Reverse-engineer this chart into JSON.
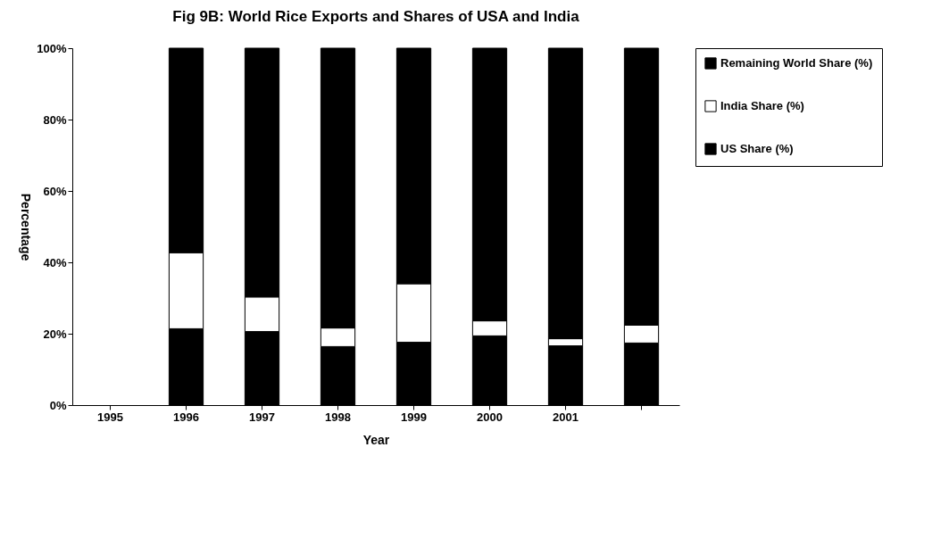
{
  "chart_data": {
    "type": "bar",
    "stacked": true,
    "title": "Fig 9B: World Rice Exports and Shares of USA and India",
    "xlabel": "Year",
    "ylabel": "Percentage",
    "categories": [
      "1995",
      "1996",
      "1997",
      "1998",
      "1999",
      "2000",
      "2001",
      null
    ],
    "series": [
      {
        "name": "US Share (%)",
        "color": "#000000",
        "values": [
          null,
          21.4,
          20.6,
          16.4,
          17.6,
          19.4,
          16.6,
          17.4
        ]
      },
      {
        "name": "India Share (%)",
        "color": "#ffffff",
        "values": [
          null,
          21.3,
          9.7,
          5.2,
          16.4,
          4.2,
          2.0,
          5.0
        ]
      },
      {
        "name": "Remaining World Share (%)",
        "color": "#000000",
        "values": [
          null,
          57.3,
          69.7,
          78.4,
          66.0,
          76.4,
          81.4,
          77.6
        ]
      }
    ],
    "ylim": [
      0,
      100
    ],
    "yticks": [
      {
        "value": 0,
        "label": "0%"
      },
      {
        "value": 20,
        "label": "20%"
      },
      {
        "value": 40,
        "label": "40%"
      },
      {
        "value": 60,
        "label": "60%"
      },
      {
        "value": 80,
        "label": "80%"
      },
      {
        "value": 100,
        "label": "100%"
      }
    ],
    "legend": "right"
  }
}
